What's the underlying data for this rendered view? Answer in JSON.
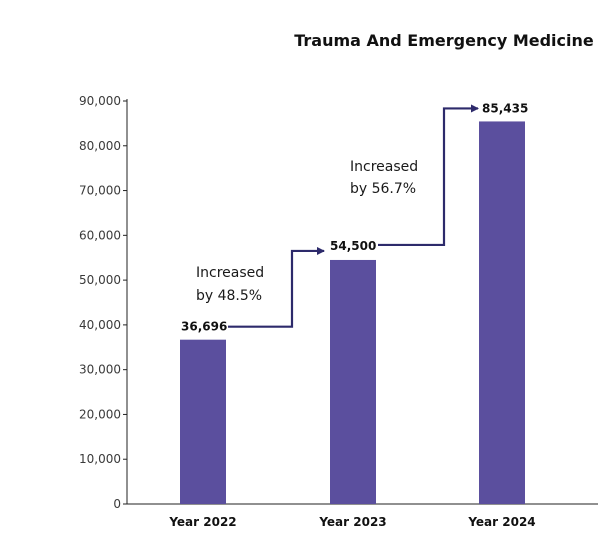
{
  "chart_data": {
    "type": "bar",
    "title": "Trauma And Emergency Medicine",
    "categories": [
      "Year 2022",
      "Year 2023",
      "Year 2024"
    ],
    "values": [
      36696,
      54500,
      85435
    ],
    "value_labels": [
      "36,696",
      "54,500",
      "85,435"
    ],
    "yticks": [
      "0",
      "10,000",
      "20,000",
      "30,000",
      "40,000",
      "50,000",
      "60,000",
      "70,000",
      "80,000",
      "90,000"
    ],
    "ylim": [
      0,
      90000
    ],
    "grid": false,
    "legend": "none",
    "annotations": [
      {
        "line1": "Increased",
        "line2": "by 48.5%"
      },
      {
        "line1": "Increased",
        "line2": "by 56.7%"
      }
    ],
    "colors": {
      "bar": "#5b4f9e",
      "connector": "#2d2a6b",
      "axis": "#222222"
    }
  }
}
